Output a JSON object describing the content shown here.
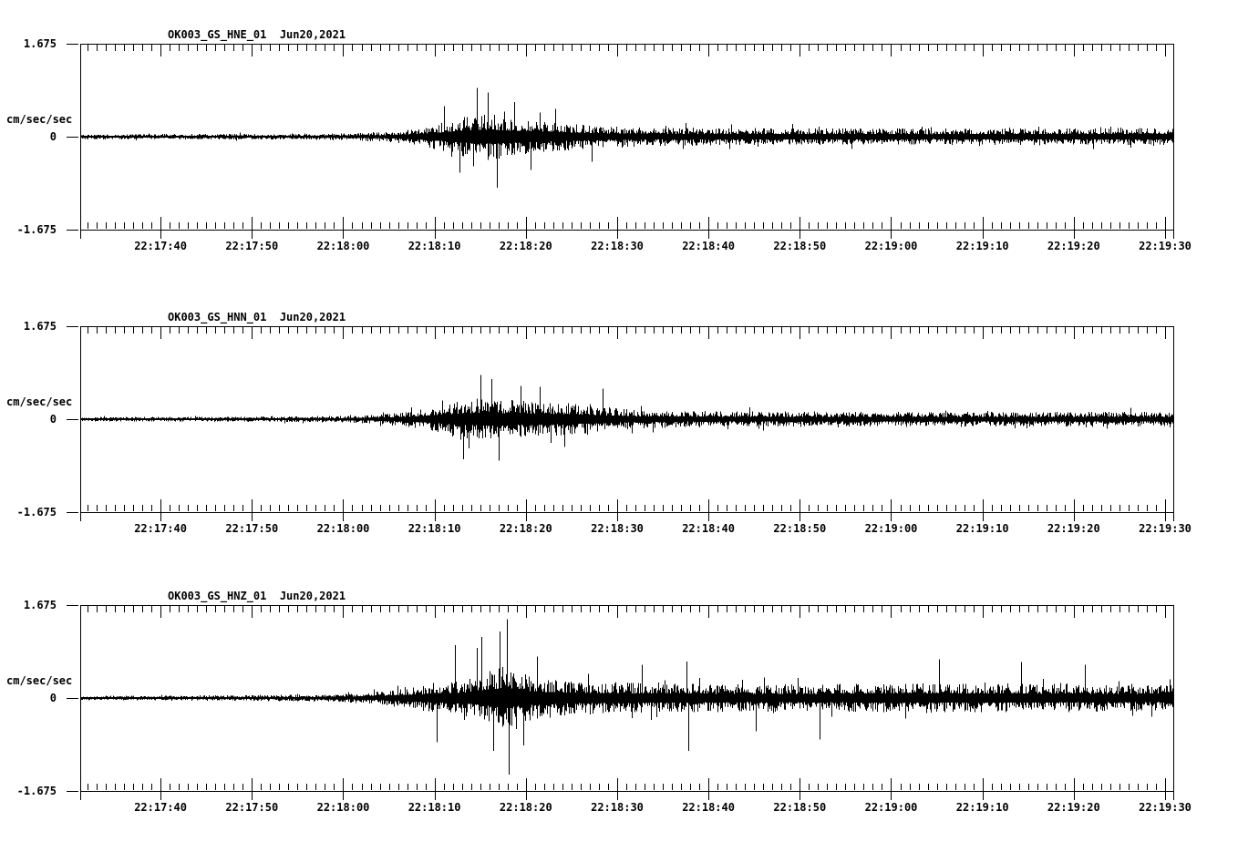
{
  "page": {
    "background": "#ffffff",
    "trace_color": "#000000"
  },
  "chart_data": [
    {
      "type": "line",
      "subtype": "seismogram",
      "title": "OK003_GS_HNE_01  Jun20,2021",
      "station_channel": "OK003_GS_HNE_01",
      "date": "Jun20,2021",
      "grid": false,
      "legend": false,
      "y_axis": {
        "unit": "cm/sec/sec",
        "tick_labels": [
          "1.675",
          "0",
          "-1.675"
        ],
        "lim": [
          -1.675,
          1.675
        ]
      },
      "x_axis": {
        "span_seconds": 119.7,
        "first_tick_offset_seconds": 8.8,
        "major_interval_seconds": 10,
        "minor_interval_seconds": 1,
        "tick_labels": [
          "22:17:40",
          "22:17:50",
          "22:18:00",
          "22:18:10",
          "22:18:20",
          "22:18:30",
          "22:18:40",
          "22:18:50",
          "22:19:00",
          "22:19:10",
          "22:19:20",
          "22:19:30"
        ]
      },
      "envelope_cm_s2": [
        [
          0,
          0.045
        ],
        [
          15,
          0.05
        ],
        [
          25,
          0.055
        ],
        [
          30,
          0.07
        ],
        [
          34,
          0.1
        ],
        [
          37,
          0.16
        ],
        [
          40,
          0.27
        ],
        [
          43,
          0.4
        ],
        [
          45,
          0.42
        ],
        [
          47,
          0.36
        ],
        [
          50,
          0.3
        ],
        [
          54,
          0.24
        ],
        [
          58,
          0.19
        ],
        [
          64,
          0.17
        ],
        [
          75,
          0.155
        ],
        [
          90,
          0.15
        ],
        [
          105,
          0.15
        ],
        [
          119.7,
          0.16
        ]
      ],
      "peak_spikes_cm_s2": [
        [
          39.8,
          0.55
        ],
        [
          41.5,
          -0.65
        ],
        [
          43.4,
          0.88
        ],
        [
          44.6,
          0.8
        ],
        [
          45.6,
          -0.92
        ],
        [
          47.5,
          0.62
        ],
        [
          49.3,
          -0.6
        ],
        [
          52,
          0.5
        ],
        [
          56,
          -0.45
        ]
      ]
    },
    {
      "type": "line",
      "subtype": "seismogram",
      "title": "OK003_GS_HNN_01  Jun20,2021",
      "station_channel": "OK003_GS_HNN_01",
      "date": "Jun20,2021",
      "grid": false,
      "legend": false,
      "y_axis": {
        "unit": "cm/sec/sec",
        "tick_labels": [
          "1.675",
          "0",
          "-1.675"
        ],
        "lim": [
          -1.675,
          1.675
        ]
      },
      "x_axis": {
        "span_seconds": 119.7,
        "first_tick_offset_seconds": 8.8,
        "major_interval_seconds": 10,
        "minor_interval_seconds": 1,
        "tick_labels": [
          "22:17:40",
          "22:17:50",
          "22:18:00",
          "22:18:10",
          "22:18:20",
          "22:18:30",
          "22:18:40",
          "22:18:50",
          "22:19:00",
          "22:19:10",
          "22:19:20",
          "22:19:30"
        ]
      },
      "envelope_cm_s2": [
        [
          0,
          0.04
        ],
        [
          15,
          0.045
        ],
        [
          25,
          0.055
        ],
        [
          30,
          0.07
        ],
        [
          33,
          0.09
        ],
        [
          36,
          0.14
        ],
        [
          39,
          0.24
        ],
        [
          42,
          0.36
        ],
        [
          45,
          0.38
        ],
        [
          48,
          0.34
        ],
        [
          52,
          0.31
        ],
        [
          56,
          0.25
        ],
        [
          60,
          0.18
        ],
        [
          65,
          0.15
        ],
        [
          75,
          0.14
        ],
        [
          90,
          0.13
        ],
        [
          105,
          0.13
        ],
        [
          119.7,
          0.14
        ]
      ],
      "peak_spikes_cm_s2": [
        [
          41.9,
          -0.72
        ],
        [
          43.8,
          0.8
        ],
        [
          45,
          0.72
        ],
        [
          45.8,
          -0.75
        ],
        [
          48.2,
          0.6
        ],
        [
          50.3,
          0.58
        ],
        [
          53,
          -0.5
        ],
        [
          57.2,
          0.55
        ]
      ]
    },
    {
      "type": "line",
      "subtype": "seismogram",
      "title": "OK003_GS_HNZ_01  Jun20,2021",
      "station_channel": "OK003_GS_HNZ_01",
      "date": "Jun20,2021",
      "grid": false,
      "legend": false,
      "y_axis": {
        "unit": "cm/sec/sec",
        "tick_labels": [
          "1.675",
          "0",
          "-1.675"
        ],
        "lim": [
          -1.675,
          1.675
        ]
      },
      "x_axis": {
        "span_seconds": 119.7,
        "first_tick_offset_seconds": 8.8,
        "major_interval_seconds": 10,
        "minor_interval_seconds": 1,
        "tick_labels": [
          "22:17:40",
          "22:17:50",
          "22:18:00",
          "22:18:10",
          "22:18:20",
          "22:18:30",
          "22:18:40",
          "22:18:50",
          "22:19:00",
          "22:19:10",
          "22:19:20",
          "22:19:30"
        ]
      },
      "envelope_cm_s2": [
        [
          0,
          0.04
        ],
        [
          15,
          0.05
        ],
        [
          25,
          0.06
        ],
        [
          29,
          0.08
        ],
        [
          32,
          0.11
        ],
        [
          35,
          0.17
        ],
        [
          38,
          0.24
        ],
        [
          41,
          0.3
        ],
        [
          43,
          0.36
        ],
        [
          45,
          0.5
        ],
        [
          46.5,
          0.6
        ],
        [
          48,
          0.45
        ],
        [
          51,
          0.36
        ],
        [
          55,
          0.3
        ],
        [
          60,
          0.28
        ],
        [
          66,
          0.26
        ],
        [
          75,
          0.25
        ],
        [
          85,
          0.26
        ],
        [
          95,
          0.27
        ],
        [
          105,
          0.26
        ],
        [
          112,
          0.25
        ],
        [
          119.7,
          0.24
        ]
      ],
      "peak_spikes_cm_s2": [
        [
          39,
          -0.8
        ],
        [
          41,
          0.95
        ],
        [
          43.4,
          0.9
        ],
        [
          43.9,
          1.1
        ],
        [
          45.2,
          -0.95
        ],
        [
          45.9,
          1.2
        ],
        [
          46.7,
          1.42
        ],
        [
          46.9,
          -1.38
        ],
        [
          48.5,
          -0.85
        ],
        [
          50,
          0.75
        ],
        [
          61.5,
          0.6
        ],
        [
          66.4,
          0.66
        ],
        [
          66.6,
          -0.95
        ],
        [
          74,
          -0.6
        ],
        [
          81,
          -0.75
        ],
        [
          94,
          0.7
        ],
        [
          103,
          0.65
        ],
        [
          110,
          0.6
        ]
      ]
    }
  ]
}
